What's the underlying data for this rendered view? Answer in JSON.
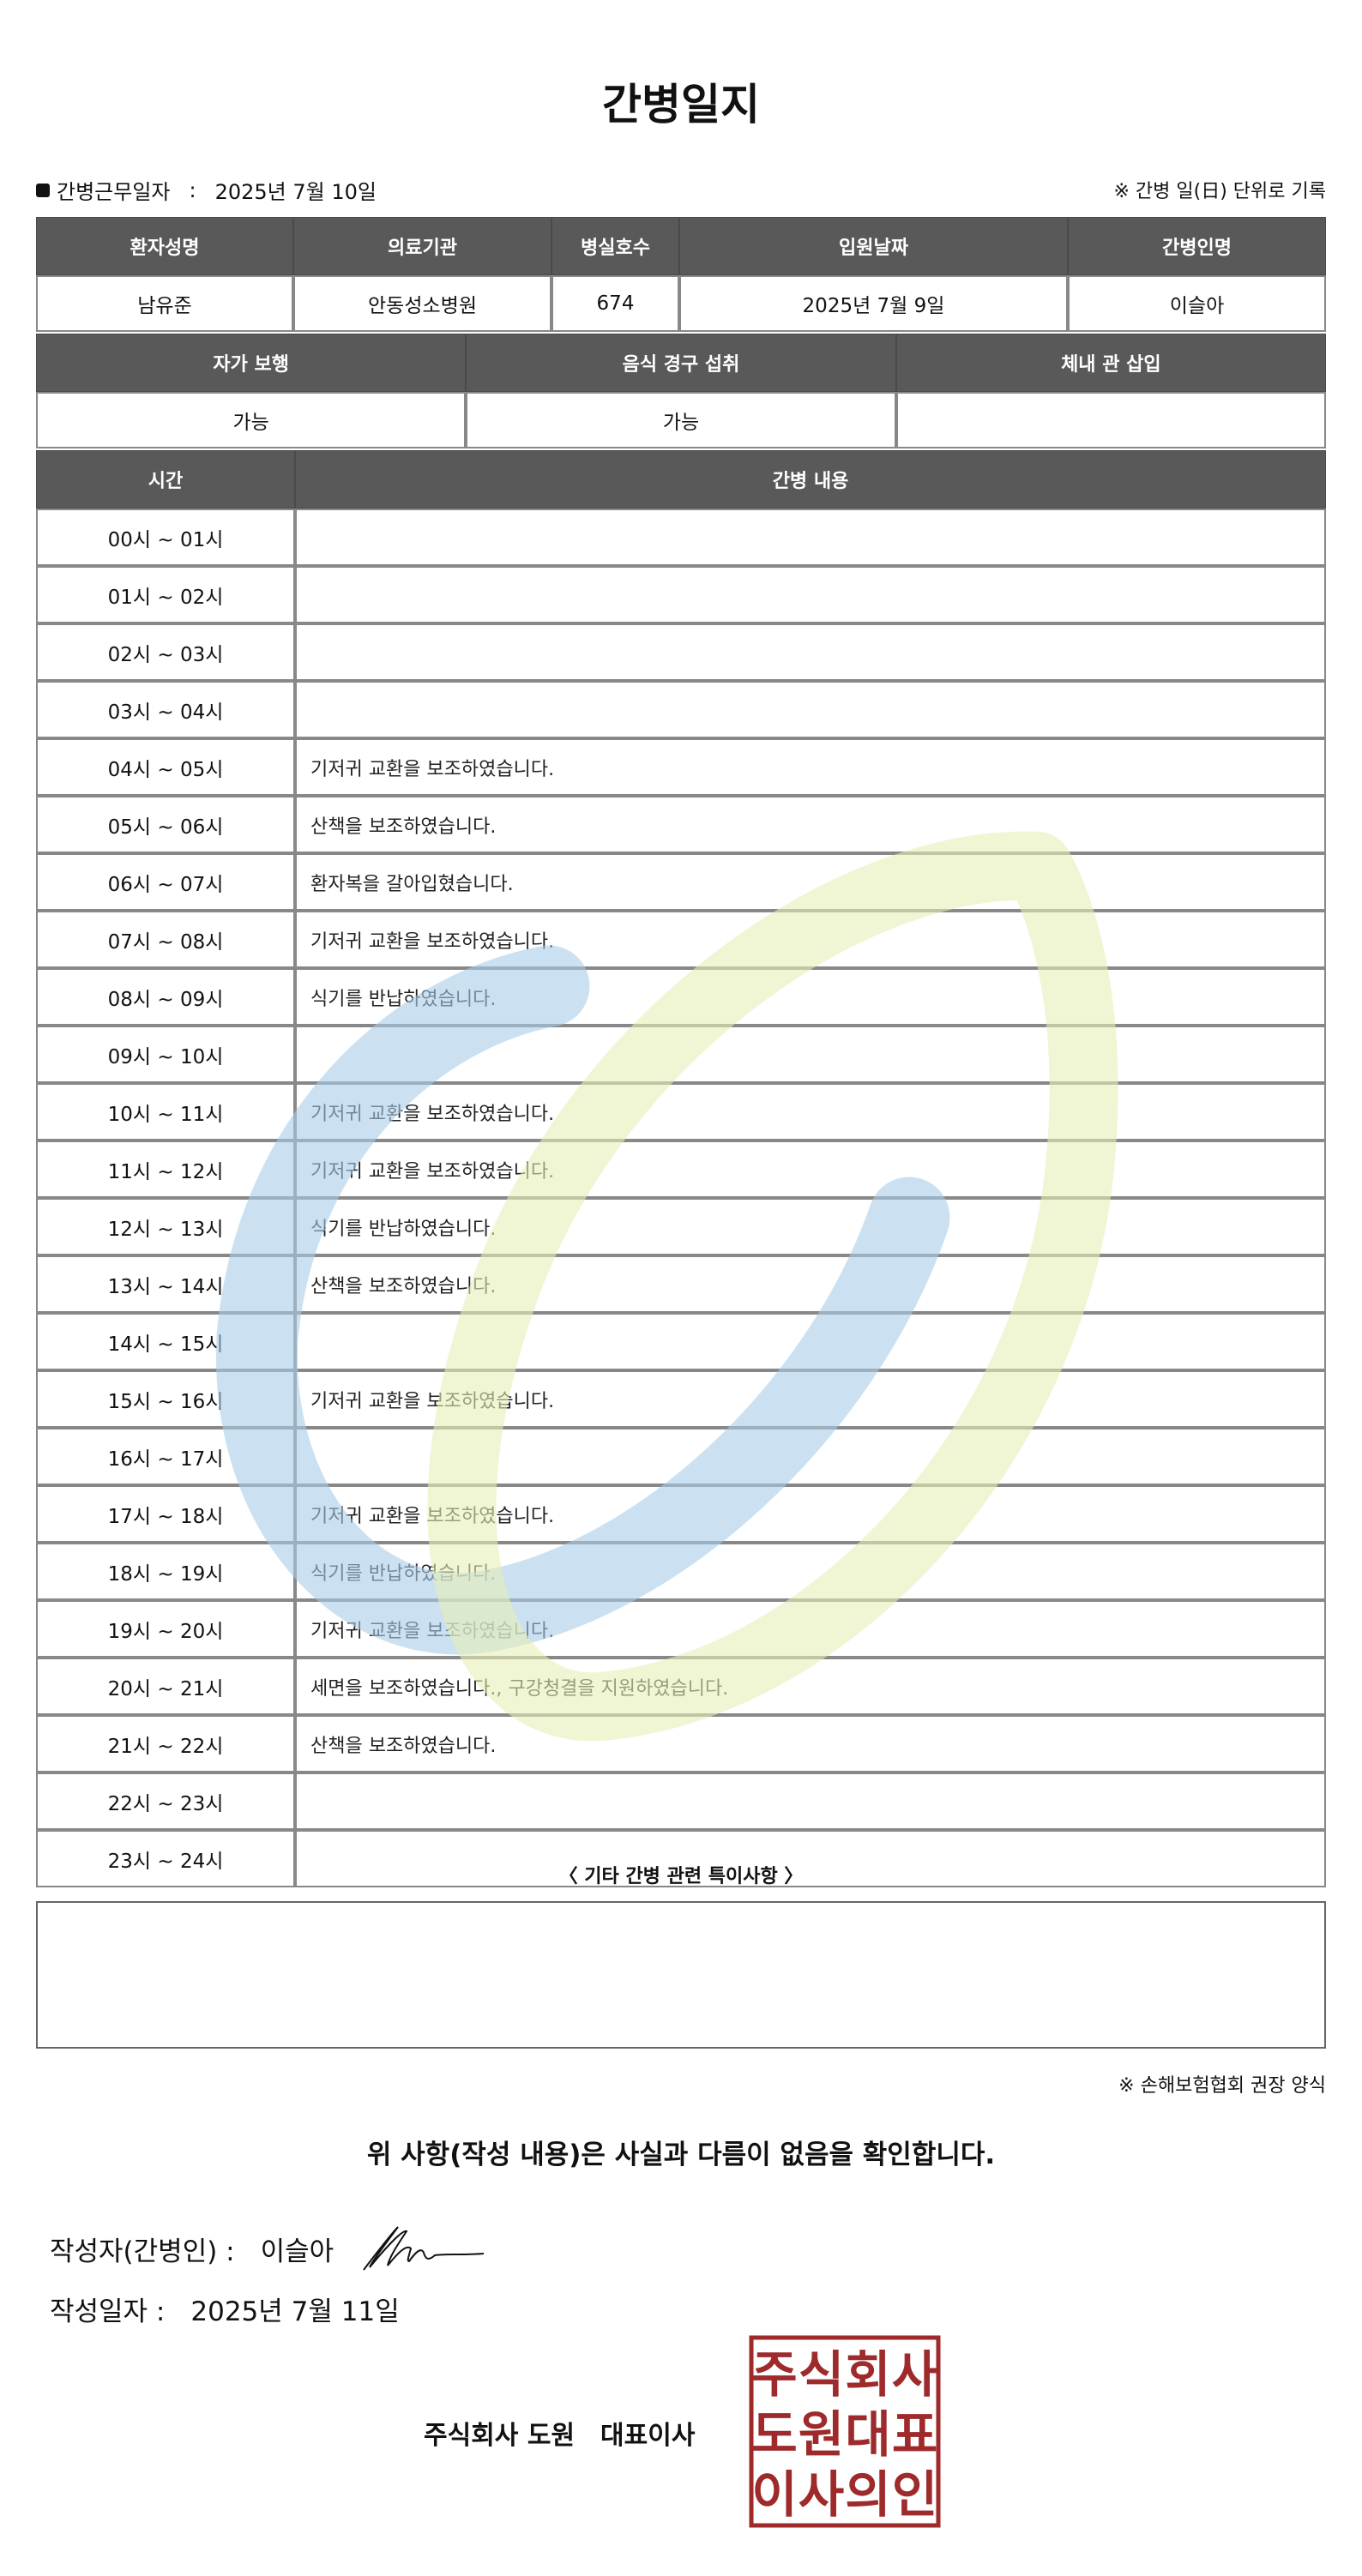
{
  "title": "간병일지",
  "work_date": {
    "label": "간병근무일자",
    "separator": ":",
    "value": "2025년 7월 10일"
  },
  "note_top": "※ 간병 일(日) 단위로 기록",
  "patient_table": {
    "headers": [
      "환자성명",
      "의료기관",
      "병실호수",
      "입원날짜",
      "간병인명"
    ],
    "values": [
      "남유준",
      "안동성소병원",
      "674",
      "2025년 7월 9일",
      "이슬아"
    ]
  },
  "status_table": {
    "headers": [
      "자가 보행",
      "음식 경구 섭취",
      "체내 관 삽입"
    ],
    "values": [
      "가능",
      "가능",
      ""
    ]
  },
  "log_table": {
    "headers": [
      "시간",
      "간병 내용"
    ],
    "rows": [
      {
        "time": "00시 ~ 01시",
        "content": ""
      },
      {
        "time": "01시 ~ 02시",
        "content": ""
      },
      {
        "time": "02시 ~ 03시",
        "content": ""
      },
      {
        "time": "03시 ~ 04시",
        "content": ""
      },
      {
        "time": "04시 ~ 05시",
        "content": "기저귀 교환을 보조하였습니다."
      },
      {
        "time": "05시 ~ 06시",
        "content": "산책을 보조하였습니다."
      },
      {
        "time": "06시 ~ 07시",
        "content": "환자복을 갈아입혔습니다."
      },
      {
        "time": "07시 ~ 08시",
        "content": "기저귀 교환을 보조하였습니다."
      },
      {
        "time": "08시 ~ 09시",
        "content": "식기를 반납하였습니다."
      },
      {
        "time": "09시 ~ 10시",
        "content": ""
      },
      {
        "time": "10시 ~ 11시",
        "content": "기저귀 교환을 보조하였습니다."
      },
      {
        "time": "11시 ~ 12시",
        "content": "기저귀 교환을 보조하였습니다."
      },
      {
        "time": "12시 ~ 13시",
        "content": "식기를 반납하였습니다."
      },
      {
        "time": "13시 ~ 14시",
        "content": "산책을 보조하였습니다."
      },
      {
        "time": "14시 ~ 15시",
        "content": ""
      },
      {
        "time": "15시 ~ 16시",
        "content": "기저귀 교환을 보조하였습니다."
      },
      {
        "time": "16시 ~ 17시",
        "content": ""
      },
      {
        "time": "17시 ~ 18시",
        "content": "기저귀 교환을 보조하였습니다."
      },
      {
        "time": "18시 ~ 19시",
        "content": "식기를 반납하였습니다."
      },
      {
        "time": "19시 ~ 20시",
        "content": "기저귀 교환을 보조하였습니다."
      },
      {
        "time": "20시 ~ 21시",
        "content": "세면을 보조하였습니다., 구강청결을 지원하였습니다."
      },
      {
        "time": "21시 ~ 22시",
        "content": "산책을 보조하였습니다."
      },
      {
        "time": "22시 ~ 23시",
        "content": ""
      },
      {
        "time": "23시 ~ 24시",
        "content": ""
      }
    ]
  },
  "etc": {
    "title": "〈 기타 간병 관련 특이사항 〉",
    "content": ""
  },
  "note_bottom": "※ 손해보험협회 권장 양식",
  "confirm": "위 사항(작성 내용)은 사실과 다름이 없음을 확인합니다.",
  "writer": {
    "label": "작성자(간병인) :",
    "name": "이슬아"
  },
  "write_date": {
    "label": "작성일자 :",
    "value": "2025년 7월 11일"
  },
  "company": "주식회사 도원　대표이사",
  "stamp": {
    "text": [
      "주식회사",
      "도원대표",
      "이사의인"
    ],
    "color": "#9e2a2b"
  },
  "colors": {
    "header_bg": "#595959",
    "watermark_blue": "#a9cde8",
    "watermark_yellow": "#e6efb8"
  }
}
